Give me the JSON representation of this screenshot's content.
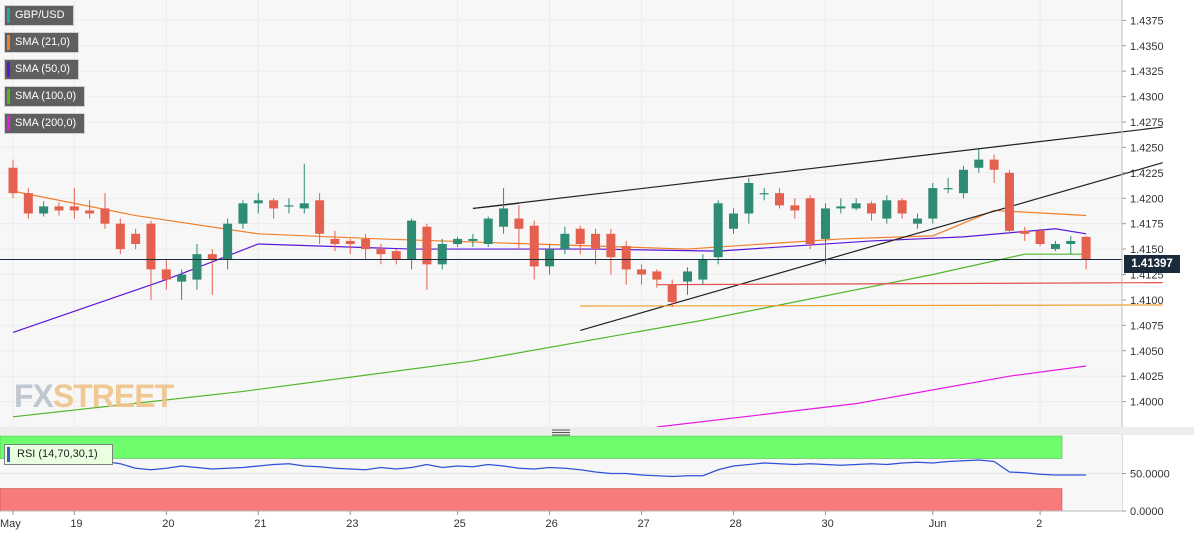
{
  "legend": [
    {
      "label": "GBP/USD",
      "color": "#26a69a"
    },
    {
      "label": "SMA (21,0)",
      "color": "#f07f2a"
    },
    {
      "label": "SMA (50,0)",
      "color": "#5b17d9"
    },
    {
      "label": "SMA (100,0)",
      "color": "#52b62b"
    },
    {
      "label": "SMA (200,0)",
      "color": "#e618e6"
    }
  ],
  "rsi_label": "RSI (14,70,30,1)",
  "price_tag": "1.41397",
  "logo": {
    "main": "FX",
    "accent": "STREET"
  },
  "chart_data": [
    {
      "type": "candlestick",
      "title": "",
      "y_range": [
        1.3975,
        1.4395
      ],
      "y_ticks": [
        "1.4000",
        "1.4025",
        "1.4050",
        "1.4075",
        "1.4100",
        "1.4125",
        "1.4150",
        "1.4175",
        "1.4200",
        "1.4225",
        "1.4250",
        "1.4275",
        "1.4300",
        "1.4325",
        "1.4350",
        "1.4375"
      ],
      "x_labels": [
        "May",
        "19",
        "20",
        "21",
        "23",
        "25",
        "26",
        "27",
        "28",
        "30",
        "Jun",
        "2"
      ],
      "current_price": 1.41397,
      "colors": {
        "up": "#2e8b74",
        "down": "#e4604f",
        "grid": "#ececec"
      },
      "candles": [
        [
          1.423,
          1.4205,
          1.4238,
          1.42
        ],
        [
          1.4205,
          1.4185,
          1.421,
          1.418
        ],
        [
          1.4185,
          1.4192,
          1.4197,
          1.4182
        ],
        [
          1.4192,
          1.4188,
          1.4196,
          1.4183
        ],
        [
          1.4192,
          1.4188,
          1.421,
          1.418
        ],
        [
          1.4188,
          1.4185,
          1.4198,
          1.418
        ],
        [
          1.419,
          1.4175,
          1.4205,
          1.417
        ],
        [
          1.4175,
          1.415,
          1.418,
          1.4145
        ],
        [
          1.4165,
          1.4155,
          1.417,
          1.415
        ],
        [
          1.4175,
          1.413,
          1.4178,
          1.41
        ],
        [
          1.413,
          1.412,
          1.414,
          1.411
        ],
        [
          1.4118,
          1.4125,
          1.413,
          1.41
        ],
        [
          1.412,
          1.4145,
          1.4155,
          1.411
        ],
        [
          1.4145,
          1.414,
          1.415,
          1.4105
        ],
        [
          1.414,
          1.4175,
          1.418,
          1.413
        ],
        [
          1.4175,
          1.4195,
          1.4198,
          1.417
        ],
        [
          1.4195,
          1.4198,
          1.4205,
          1.4185
        ],
        [
          1.4198,
          1.419,
          1.42,
          1.418
        ],
        [
          1.4192,
          1.4193,
          1.42,
          1.4185
        ],
        [
          1.419,
          1.4195,
          1.4234,
          1.4185
        ],
        [
          1.4198,
          1.4165,
          1.4205,
          1.4155
        ],
        [
          1.416,
          1.4155,
          1.4168,
          1.4148
        ],
        [
          1.4158,
          1.4155,
          1.416,
          1.4145
        ],
        [
          1.416,
          1.415,
          1.4165,
          1.414
        ],
        [
          1.415,
          1.4145,
          1.4155,
          1.4135
        ],
        [
          1.4148,
          1.414,
          1.415,
          1.4135
        ],
        [
          1.414,
          1.4178,
          1.418,
          1.413
        ],
        [
          1.4172,
          1.4135,
          1.4175,
          1.411
        ],
        [
          1.4135,
          1.4155,
          1.416,
          1.413
        ],
        [
          1.4155,
          1.416,
          1.4162,
          1.4152
        ],
        [
          1.4158,
          1.416,
          1.4165,
          1.4152
        ],
        [
          1.4155,
          1.418,
          1.4182,
          1.4152
        ],
        [
          1.4172,
          1.419,
          1.421,
          1.4165
        ],
        [
          1.418,
          1.417,
          1.4193,
          1.415
        ],
        [
          1.4173,
          1.4133,
          1.4178,
          1.412
        ],
        [
          1.4133,
          1.415,
          1.4155,
          1.4125
        ],
        [
          1.415,
          1.4165,
          1.4172,
          1.4145
        ],
        [
          1.417,
          1.4155,
          1.4173,
          1.4145
        ],
        [
          1.4165,
          1.415,
          1.417,
          1.4135
        ],
        [
          1.4165,
          1.4142,
          1.417,
          1.4125
        ],
        [
          1.4153,
          1.413,
          1.4158,
          1.4115
        ],
        [
          1.413,
          1.4125,
          1.4135,
          1.4115
        ],
        [
          1.4128,
          1.412,
          1.413,
          1.4112
        ],
        [
          1.4115,
          1.4098,
          1.412,
          1.4093
        ],
        [
          1.4118,
          1.4128,
          1.4132,
          1.4105
        ],
        [
          1.412,
          1.414,
          1.4145,
          1.4115
        ],
        [
          1.4142,
          1.4195,
          1.4198,
          1.4135
        ],
        [
          1.417,
          1.4185,
          1.419,
          1.4165
        ],
        [
          1.4185,
          1.4215,
          1.422,
          1.4175
        ],
        [
          1.4205,
          1.4205,
          1.421,
          1.4198
        ],
        [
          1.4205,
          1.4193,
          1.421,
          1.419
        ],
        [
          1.4193,
          1.4188,
          1.42,
          1.418
        ],
        [
          1.42,
          1.4155,
          1.4203,
          1.415
        ],
        [
          1.416,
          1.419,
          1.4195,
          1.4135
        ],
        [
          1.419,
          1.4192,
          1.42,
          1.4185
        ],
        [
          1.419,
          1.4195,
          1.42,
          1.4188
        ],
        [
          1.4195,
          1.4185,
          1.4197,
          1.4178
        ],
        [
          1.418,
          1.4198,
          1.4203,
          1.4175
        ],
        [
          1.4198,
          1.4185,
          1.42,
          1.418
        ],
        [
          1.4175,
          1.418,
          1.4185,
          1.417
        ],
        [
          1.418,
          1.421,
          1.4215,
          1.4175
        ],
        [
          1.421,
          1.421,
          1.422,
          1.4205
        ],
        [
          1.4205,
          1.4228,
          1.4232,
          1.42
        ],
        [
          1.423,
          1.4238,
          1.4248,
          1.4225
        ],
        [
          1.4238,
          1.4228,
          1.4243,
          1.4215
        ],
        [
          1.4225,
          1.4168,
          1.4228,
          1.4165
        ],
        [
          1.4168,
          1.4165,
          1.4172,
          1.4158
        ],
        [
          1.4168,
          1.4155,
          1.417,
          1.4153
        ],
        [
          1.415,
          1.4155,
          1.4158,
          1.4148
        ],
        [
          1.4155,
          1.4158,
          1.4163,
          1.4145
        ],
        [
          1.4162,
          1.414,
          1.4163,
          1.413
        ]
      ],
      "sma21": [
        [
          0,
          1.4207
        ],
        [
          8,
          1.4183
        ],
        [
          16,
          1.4165
        ],
        [
          24,
          1.416
        ],
        [
          34,
          1.4155
        ],
        [
          44,
          1.415
        ],
        [
          54,
          1.416
        ],
        [
          60,
          1.4163
        ],
        [
          64,
          1.4188
        ],
        [
          70,
          1.4183
        ]
      ],
      "sma50": [
        [
          0,
          1.4068
        ],
        [
          10,
          1.412
        ],
        [
          16,
          1.4155
        ],
        [
          26,
          1.415
        ],
        [
          38,
          1.415
        ],
        [
          46,
          1.4148
        ],
        [
          56,
          1.4158
        ],
        [
          62,
          1.4162
        ],
        [
          68,
          1.417
        ],
        [
          70,
          1.4165
        ]
      ],
      "sma100": [
        [
          0,
          1.3985
        ],
        [
          15,
          1.401
        ],
        [
          30,
          1.404
        ],
        [
          45,
          1.408
        ],
        [
          60,
          1.4125
        ],
        [
          66,
          1.4145
        ],
        [
          70,
          1.4145
        ]
      ],
      "sma200": [
        [
          42,
          1.3975
        ],
        [
          55,
          1.3998
        ],
        [
          65,
          1.4025
        ],
        [
          70,
          1.4035
        ]
      ],
      "lines": [
        {
          "name": "upper-channel-line",
          "from": [
            30,
            1.419
          ],
          "to": [
            75,
            1.427
          ],
          "color": "#222222"
        },
        {
          "name": "rising-wedge-line",
          "from": [
            37,
            1.407
          ],
          "to": [
            75,
            1.4235
          ],
          "color": "#222222"
        },
        {
          "name": "channel-top-short-line",
          "from": [
            30,
            1.419
          ],
          "to": [
            33,
            1.4195
          ],
          "color": "#222222"
        },
        {
          "name": "support-red-line",
          "from": [
            42,
            1.4115
          ],
          "to": [
            75,
            1.4117
          ],
          "color": "#e05050"
        },
        {
          "name": "support-orange-line",
          "from": [
            37,
            1.4094
          ],
          "to": [
            75,
            1.4095
          ],
          "color": "#f0a030"
        }
      ]
    },
    {
      "type": "line",
      "title": "",
      "y_range": [
        0,
        100
      ],
      "y_ticks": [
        "0.0000",
        "50.0000"
      ],
      "overbought": 70,
      "oversold": 30,
      "colors": {
        "line": "#2f52d8",
        "zone_over": "#6dfd6d",
        "zone_under": "#f77b7b"
      },
      "values": [
        82,
        80,
        78,
        75,
        72,
        70,
        66,
        63,
        57,
        55,
        57,
        60,
        58,
        56,
        57,
        58,
        60,
        62,
        63,
        60,
        59,
        57,
        56,
        55,
        58,
        56,
        58,
        62,
        58,
        60,
        59,
        62,
        60,
        57,
        56,
        58,
        57,
        55,
        52,
        50,
        50,
        48,
        47,
        46,
        47,
        47,
        55,
        60,
        62,
        64,
        63,
        62,
        63,
        62,
        61,
        62,
        63,
        62,
        64,
        65,
        64,
        66,
        67,
        68,
        66,
        52,
        51,
        49,
        48,
        48,
        48
      ]
    }
  ]
}
